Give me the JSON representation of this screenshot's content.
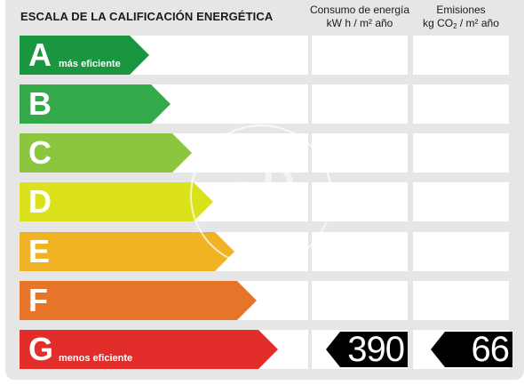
{
  "title": "ESCALA DE LA CALIFICACIÓN ENERGÉTICA",
  "columns": {
    "energy": {
      "label": "Consumo de energía",
      "unit": "kW h  / m² año"
    },
    "emissions": {
      "label": "Emisiones",
      "unit_prefix": "kg CO",
      "unit_sub": "2",
      "unit_suffix": "  / m² año"
    }
  },
  "ratings": [
    {
      "letter": "A",
      "sublabel": "más eficiente",
      "color": "#1a9641"
    },
    {
      "letter": "B",
      "sublabel": "",
      "color": "#34a94a"
    },
    {
      "letter": "C",
      "sublabel": "",
      "color": "#8cc63f"
    },
    {
      "letter": "D",
      "sublabel": "",
      "color": "#dbe21c"
    },
    {
      "letter": "E",
      "sublabel": "",
      "color": "#f0b323"
    },
    {
      "letter": "F",
      "sublabel": "",
      "color": "#e6752a"
    },
    {
      "letter": "G",
      "sublabel": "menos eficiente",
      "color": "#e22d2a"
    }
  ],
  "current": {
    "rating": "G",
    "energy_value": "390",
    "emissions_value": "66"
  },
  "watermark": "aP"
}
